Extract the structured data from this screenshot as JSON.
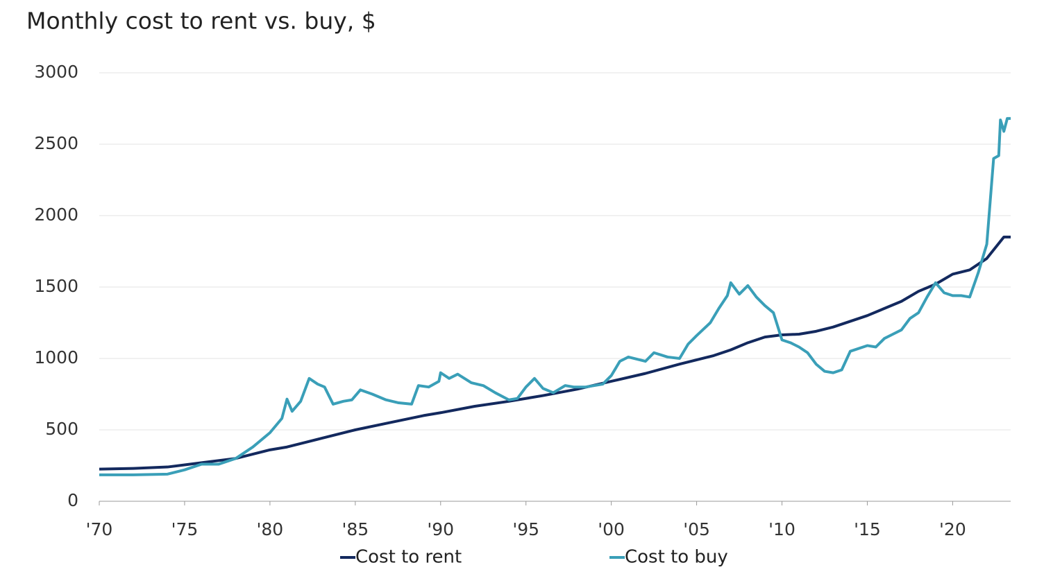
{
  "chart_data": {
    "type": "line",
    "title": "Monthly cost to rent vs. buy, $",
    "xlim": [
      1970,
      2023.4
    ],
    "xticks": [
      {
        "value": 1970,
        "label": "'70"
      },
      {
        "value": 1975,
        "label": "'75"
      },
      {
        "value": 1980,
        "label": "'80"
      },
      {
        "value": 1985,
        "label": "'85"
      },
      {
        "value": 1990,
        "label": "'90"
      },
      {
        "value": 1995,
        "label": "'95"
      },
      {
        "value": 2000,
        "label": "'00"
      },
      {
        "value": 2005,
        "label": "'05"
      },
      {
        "value": 2010,
        "label": "'10"
      },
      {
        "value": 2015,
        "label": "'15"
      },
      {
        "value": 2020,
        "label": "'20"
      }
    ],
    "ylim": [
      0,
      3000
    ],
    "yticks": [
      0,
      500,
      1000,
      1500,
      2000,
      2500,
      3000
    ],
    "grid": true,
    "legend": "bottom",
    "series": [
      {
        "name": "Cost to rent",
        "color": "#13295e",
        "x": [
          1970,
          1972,
          1974,
          1976,
          1978,
          1980,
          1981,
          1983,
          1985,
          1987,
          1989,
          1990,
          1992,
          1994,
          1996,
          1998,
          2000,
          2002,
          2004,
          2006,
          2007,
          2008,
          2009,
          2010,
          2011,
          2012,
          2013,
          2015,
          2017,
          2018,
          2019,
          2020,
          2021,
          2022,
          2023,
          2023.4
        ],
        "values": [
          225,
          230,
          240,
          270,
          300,
          360,
          380,
          440,
          500,
          550,
          600,
          620,
          665,
          700,
          740,
          785,
          840,
          895,
          960,
          1020,
          1060,
          1110,
          1150,
          1165,
          1170,
          1190,
          1220,
          1300,
          1400,
          1470,
          1520,
          1590,
          1620,
          1700,
          1850,
          1850
        ]
      },
      {
        "name": "Cost to buy",
        "color": "#3a9fb8",
        "x": [
          1970,
          1972,
          1974,
          1975,
          1976,
          1977,
          1978,
          1979,
          1980,
          1980.7,
          1981,
          1981.3,
          1981.8,
          1982.3,
          1982.8,
          1983.2,
          1983.7,
          1984.3,
          1984.8,
          1985.3,
          1986,
          1986.8,
          1987.5,
          1988.3,
          1988.7,
          1989.3,
          1989.9,
          1990,
          1990.5,
          1991,
          1991.8,
          1992.5,
          1993.2,
          1994,
          1994.5,
          1995,
          1995.5,
          1996,
          1996.6,
          1997.3,
          1997.8,
          1998.5,
          1999.5,
          2000,
          2000.5,
          2001,
          2002,
          2002.5,
          2003.3,
          2004,
          2004.5,
          2005,
          2005.8,
          2006.3,
          2006.8,
          2007,
          2007.5,
          2008,
          2008.5,
          2009,
          2009.5,
          2010,
          2010.5,
          2011,
          2011.5,
          2012,
          2012.5,
          2013,
          2013.5,
          2014,
          2015,
          2015.5,
          2016,
          2016.5,
          2017,
          2017.5,
          2018,
          2018.5,
          2019,
          2019.5,
          2020,
          2020.5,
          2021,
          2021.5,
          2022,
          2022.2,
          2022.4,
          2022.7,
          2022.8,
          2023,
          2023.2,
          2023.4
        ],
        "values": [
          185,
          185,
          190,
          220,
          260,
          260,
          300,
          380,
          480,
          580,
          715,
          630,
          700,
          860,
          820,
          800,
          680,
          700,
          710,
          780,
          750,
          710,
          690,
          680,
          810,
          800,
          840,
          900,
          860,
          890,
          830,
          810,
          760,
          710,
          720,
          800,
          860,
          790,
          760,
          810,
          800,
          800,
          820,
          880,
          980,
          1010,
          980,
          1040,
          1010,
          1000,
          1100,
          1160,
          1250,
          1350,
          1440,
          1530,
          1450,
          1510,
          1430,
          1370,
          1320,
          1130,
          1110,
          1080,
          1040,
          960,
          910,
          900,
          920,
          1050,
          1090,
          1080,
          1140,
          1170,
          1200,
          1280,
          1320,
          1430,
          1530,
          1460,
          1440,
          1440,
          1430,
          1600,
          1800,
          2100,
          2400,
          2420,
          2670,
          2590,
          2680,
          2680
        ]
      }
    ]
  }
}
